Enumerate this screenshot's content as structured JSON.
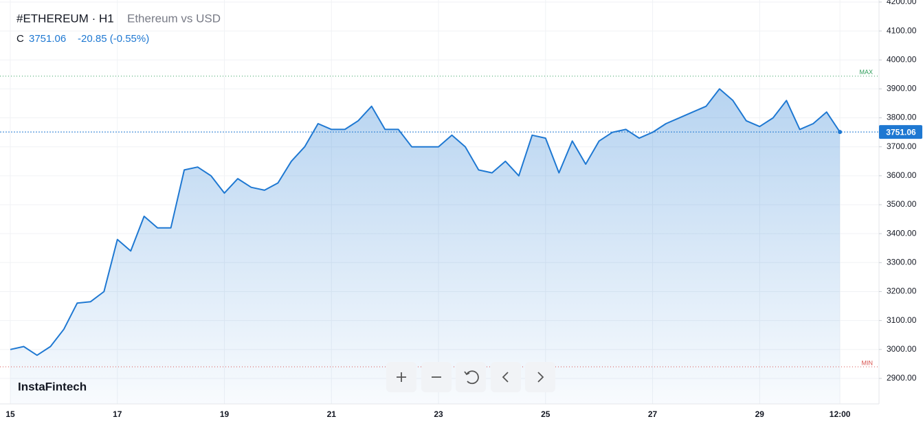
{
  "chart_data": {
    "type": "area",
    "title": "#ETHEREUM · H1",
    "subtitle": "Ethereum vs USD",
    "ohlc_label": "C",
    "change": "-20.85 (-0.55%)",
    "brand": "InstaFintech",
    "categories": [
      "15",
      null,
      null,
      null,
      null,
      null,
      null,
      null,
      "17",
      null,
      null,
      null,
      null,
      null,
      null,
      null,
      "19",
      null,
      null,
      null,
      null,
      null,
      null,
      null,
      "21",
      null,
      null,
      null,
      null,
      null,
      null,
      null,
      "23",
      null,
      null,
      null,
      null,
      null,
      null,
      null,
      "25",
      null,
      null,
      null,
      null,
      null,
      null,
      null,
      "27",
      null,
      null,
      null,
      null,
      null,
      null,
      null,
      "29",
      null,
      null,
      null,
      null,
      null,
      "12:00"
    ],
    "series": [
      {
        "name": "ETHEREUM",
        "color": "#1e78d2",
        "values": [
          3000,
          3010,
          2980,
          3010,
          3070,
          3160,
          3165,
          3200,
          3380,
          3340,
          3460,
          3420,
          3420,
          3620,
          3630,
          3600,
          3540,
          3590,
          3560,
          3550,
          3575,
          3650,
          3700,
          3780,
          3760,
          3760,
          3790,
          3840,
          3760,
          3760,
          3700,
          3700,
          3700,
          3740,
          3700,
          3620,
          3610,
          3650,
          3600,
          3740,
          3730,
          3610,
          3720,
          3640,
          3720,
          3750,
          3760,
          3730,
          3750,
          3780,
          3800,
          3820,
          3840,
          3900,
          3860,
          3790,
          3770,
          3800,
          3860,
          3760,
          3780,
          3820,
          3751.06
        ]
      }
    ],
    "ylim": [
      2812,
      4207
    ],
    "yticks": [
      {
        "value": 2900,
        "label": "2900.00"
      },
      {
        "value": 3000,
        "label": "3000.00"
      },
      {
        "value": 3100,
        "label": "3100.00"
      },
      {
        "value": 3200,
        "label": "3200.00"
      },
      {
        "value": 3300,
        "label": "3300.00"
      },
      {
        "value": 3400,
        "label": "3400.00"
      },
      {
        "value": 3500,
        "label": "3500.00"
      },
      {
        "value": 3600,
        "label": "3600.00"
      },
      {
        "value": 3700,
        "label": "3700.00"
      },
      {
        "value": 3800,
        "label": "3800.00"
      },
      {
        "value": 3900,
        "label": "3900.00"
      },
      {
        "value": 4000,
        "label": "4000.00"
      },
      {
        "value": 4100,
        "label": "4100.00"
      },
      {
        "value": 4200,
        "label": "4200.00"
      }
    ],
    "max_line": {
      "label": "MAX",
      "value": 3944,
      "color": "#2e9d5a"
    },
    "min_line": {
      "label": "MIN",
      "value": 2940,
      "color": "#d9534f"
    },
    "grid": true
  }
}
